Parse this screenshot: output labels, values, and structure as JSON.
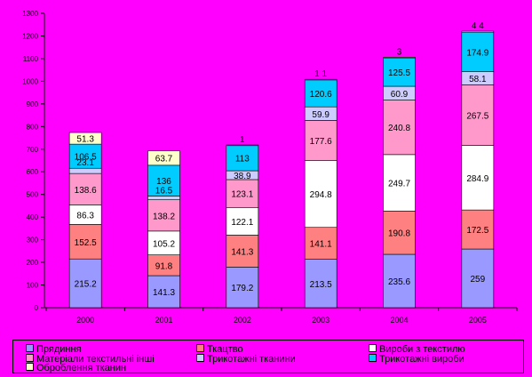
{
  "chart_data": {
    "type": "bar",
    "stacked": true,
    "categories": [
      "2000",
      "2001",
      "2002",
      "2003",
      "2004",
      "2005"
    ],
    "ylim": [
      0,
      1300
    ],
    "yticks": [
      0,
      100,
      200,
      300,
      400,
      500,
      600,
      700,
      800,
      900,
      1000,
      1100,
      1200,
      1300
    ],
    "grid": false,
    "legend_position": "bottom",
    "series": [
      {
        "name": "Прядиння",
        "color": "#9999ff",
        "values": [
          215.2,
          141.3,
          179.2,
          213.5,
          235.6,
          259
        ],
        "labels": [
          "215.2",
          "141.3",
          "179.2",
          "213.5",
          "235.6",
          "259"
        ]
      },
      {
        "name": "Ткацтво",
        "color": "#ff8080",
        "values": [
          152.5,
          91.8,
          141.3,
          141.1,
          190.8,
          172.5
        ],
        "labels": [
          "152.5",
          "91.8",
          "141.3",
          "141.1",
          "190.8",
          "172.5"
        ]
      },
      {
        "name": "Вироби з текстилю",
        "color": "#ffffff",
        "values": [
          86.3,
          105.2,
          122.1,
          294.8,
          249.7,
          284.9
        ],
        "labels": [
          "86.3",
          "105.2",
          "122.1",
          "294.8",
          "249.7",
          "284.9"
        ]
      },
      {
        "name": "Матеріали текстильні інші",
        "color": "#ff99cc",
        "values": [
          138.6,
          138.2,
          123.1,
          177.6,
          240.8,
          267.5
        ],
        "labels": [
          "138.6",
          "138.2",
          "123.1",
          "177.6",
          "240.8",
          "267.5"
        ]
      },
      {
        "name": "Трикотажні тканини",
        "color": "#ccccff",
        "values": [
          23.1,
          16.5,
          38.9,
          59.9,
          60.9,
          58.1
        ],
        "labels": [
          "23.1",
          "16.5",
          "38.9",
          "59.9",
          "60.9",
          "58.1"
        ]
      },
      {
        "name": "Трикотажні вироби",
        "color": "#00ccff",
        "values": [
          106.5,
          136,
          113,
          120.6,
          125.5,
          174.9
        ],
        "labels": [
          "106.5",
          "136",
          "113",
          "120.6",
          "125.5",
          "174.9"
        ]
      },
      {
        "name": "Оброблення тканин",
        "color": "#ffffcc",
        "values": [
          51.3,
          63.7,
          1,
          1.1,
          3,
          4.4
        ],
        "labels": [
          "51.3",
          "63.7",
          "1",
          "1 1",
          "3",
          "4 4"
        ]
      }
    ]
  },
  "legend": {
    "items": [
      "Прядиння",
      "Ткацтво",
      "Вироби з текстилю",
      "Матеріали текстильні інші",
      "Трикотажні тканини",
      "Трикотажні вироби",
      "Оброблення тканин"
    ],
    "colors": [
      "#9999ff",
      "#ff8080",
      "#ffffff",
      "#ff99cc",
      "#ccccff",
      "#00ccff",
      "#ffffcc"
    ]
  }
}
